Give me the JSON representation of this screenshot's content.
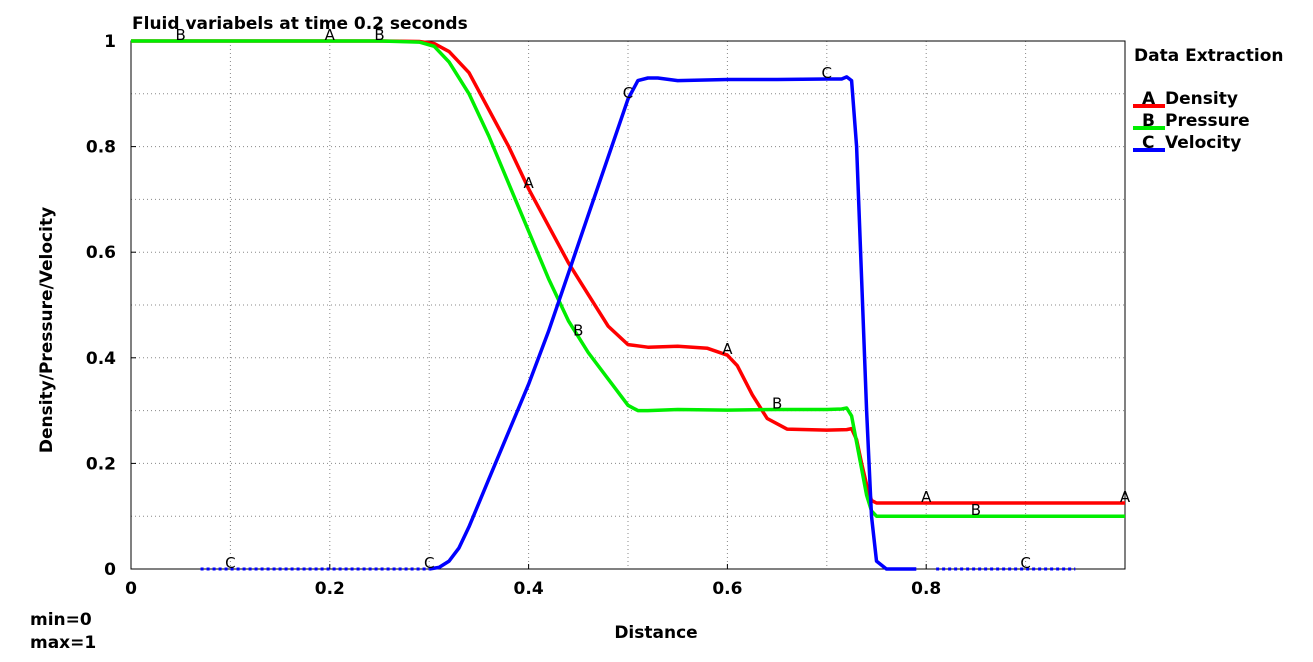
{
  "chart_data": {
    "type": "line",
    "title": "Fluid variabels at time 0.2 seconds",
    "xlabel": "Distance",
    "ylabel": "Density/Pressure/Velocity",
    "xlim": [
      0,
      1
    ],
    "ylim": [
      0,
      1
    ],
    "x_ticks": [
      "0",
      "0.2",
      "0.4",
      "0.6",
      "0.8"
    ],
    "y_ticks": [
      "0",
      "0.2",
      "0.4",
      "0.6",
      "0.8",
      "1"
    ],
    "grid": true,
    "legend": {
      "title": "Data Extraction",
      "placement": "right",
      "entries": [
        {
          "marker": "A",
          "name": "Density",
          "color": "#ff0000"
        },
        {
          "marker": "B",
          "name": "Pressure",
          "color": "#00ee00"
        },
        {
          "marker": "C",
          "name": "Velocity",
          "color": "#0000ff"
        }
      ]
    },
    "series": [
      {
        "marker": "A",
        "name": "Density",
        "color": "#ff0000",
        "x": [
          0,
          0.05,
          0.2,
          0.25,
          0.29,
          0.305,
          0.32,
          0.34,
          0.36,
          0.38,
          0.4,
          0.42,
          0.44,
          0.46,
          0.48,
          0.5,
          0.52,
          0.55,
          0.58,
          0.6,
          0.61,
          0.625,
          0.64,
          0.66,
          0.7,
          0.72,
          0.725,
          0.73,
          0.735,
          0.74,
          0.745,
          0.75,
          0.8,
          1
        ],
        "y": [
          1,
          1,
          1,
          1,
          0.999,
          0.995,
          0.98,
          0.94,
          0.87,
          0.8,
          0.72,
          0.65,
          0.58,
          0.52,
          0.46,
          0.425,
          0.42,
          0.422,
          0.418,
          0.405,
          0.385,
          0.33,
          0.285,
          0.265,
          0.263,
          0.264,
          0.266,
          0.245,
          0.2,
          0.16,
          0.13,
          0.125,
          0.125,
          0.125
        ],
        "labels_at_x": [
          0.2,
          0.4,
          0.6,
          0.8,
          1.0
        ]
      },
      {
        "marker": "B",
        "name": "Pressure",
        "color": "#00ee00",
        "x": [
          0,
          0.05,
          0.2,
          0.25,
          0.29,
          0.305,
          0.32,
          0.34,
          0.36,
          0.38,
          0.4,
          0.42,
          0.44,
          0.46,
          0.48,
          0.5,
          0.51,
          0.52,
          0.55,
          0.6,
          0.65,
          0.7,
          0.715,
          0.72,
          0.725,
          0.73,
          0.735,
          0.74,
          0.745,
          0.75,
          0.8,
          1
        ],
        "y": [
          1,
          1,
          1,
          1,
          0.998,
          0.99,
          0.96,
          0.9,
          0.82,
          0.73,
          0.64,
          0.55,
          0.47,
          0.41,
          0.36,
          0.31,
          0.3,
          0.3,
          0.302,
          0.301,
          0.302,
          0.302,
          0.303,
          0.305,
          0.29,
          0.24,
          0.19,
          0.14,
          0.11,
          0.1,
          0.1,
          0.1
        ],
        "labels_at_x": [
          0.05,
          0.25,
          0.45,
          0.65,
          0.85
        ]
      },
      {
        "marker": "C",
        "name": "Velocity",
        "color": "#0000ff",
        "x": [
          0.3,
          0.31,
          0.32,
          0.33,
          0.34,
          0.36,
          0.38,
          0.4,
          0.42,
          0.44,
          0.46,
          0.48,
          0.5,
          0.51,
          0.52,
          0.53,
          0.55,
          0.6,
          0.65,
          0.7,
          0.715,
          0.72,
          0.725,
          0.73,
          0.735,
          0.74,
          0.745,
          0.75,
          0.76,
          0.79
        ],
        "y": [
          0,
          0.003,
          0.015,
          0.04,
          0.08,
          0.17,
          0.26,
          0.35,
          0.45,
          0.56,
          0.67,
          0.78,
          0.89,
          0.925,
          0.93,
          0.93,
          0.925,
          0.927,
          0.927,
          0.928,
          0.928,
          0.932,
          0.925,
          0.8,
          0.55,
          0.3,
          0.1,
          0.015,
          0,
          0
        ],
        "dotted_segments": [
          [
            0.07,
            0.3
          ],
          [
            0.81,
            0.95
          ]
        ],
        "labels_at_x": [
          0.1,
          0.3,
          0.5,
          0.7,
          0.9
        ]
      }
    ],
    "footer": {
      "min": "min=0",
      "max": "max=1"
    }
  }
}
